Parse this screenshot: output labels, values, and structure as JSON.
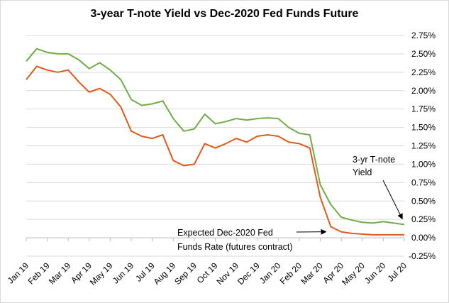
{
  "chart_data": {
    "type": "line",
    "title": "3-year T-note Yield vs Dec-2020 Fed Funds Future",
    "xlabel": "",
    "ylabel": "",
    "ylim": [
      -0.25,
      2.75
    ],
    "y_ticks": [
      "2.75%",
      "2.50%",
      "2.25%",
      "2.00%",
      "1.75%",
      "1.50%",
      "1.25%",
      "1.00%",
      "0.75%",
      "0.50%",
      "0.25%",
      "0.00%",
      "-0.25%"
    ],
    "y_tick_values": [
      2.75,
      2.5,
      2.25,
      2.0,
      1.75,
      1.5,
      1.25,
      1.0,
      0.75,
      0.5,
      0.25,
      0.0,
      -0.25
    ],
    "x_ticks": [
      "Jan 19",
      "Feb 19",
      "Mar 19",
      "Apr 19",
      "May 19",
      "Jun 19",
      "Jul 19",
      "Aug 19",
      "Sep 19",
      "Oct 19",
      "Nov 19",
      "Dec 19",
      "Jan 20",
      "Feb 20",
      "Mar 20",
      "Apr 20",
      "May 20",
      "Jun 20",
      "Jul 20"
    ],
    "grid": true,
    "legend": "none",
    "series": [
      {
        "color": "#70ad47",
        "points": [
          [
            "Jan 19",
            2.4
          ],
          [
            "Jan 19 mid",
            2.57
          ],
          [
            "Feb 19",
            2.52
          ],
          [
            "Feb 19 mid",
            2.5
          ],
          [
            "Mar 19",
            2.5
          ],
          [
            "Mar 19 mid",
            2.42
          ],
          [
            "Apr 19",
            2.3
          ],
          [
            "Apr 19 mid",
            2.38
          ],
          [
            "May 19",
            2.28
          ],
          [
            "May 19 mid",
            2.15
          ],
          [
            "Jun 19",
            1.88
          ],
          [
            "Jun 19 mid",
            1.8
          ],
          [
            "Jul 19",
            1.82
          ],
          [
            "Jul 19 mid",
            1.86
          ],
          [
            "Aug 19",
            1.62
          ],
          [
            "Aug 19 mid",
            1.45
          ],
          [
            "Sep 19",
            1.48
          ],
          [
            "Sep 19 mid",
            1.68
          ],
          [
            "Oct 19",
            1.55
          ],
          [
            "Oct 19 mid",
            1.58
          ],
          [
            "Nov 19",
            1.62
          ],
          [
            "Nov 19 mid",
            1.6
          ],
          [
            "Dec 19",
            1.62
          ],
          [
            "Dec 19 mid",
            1.63
          ],
          [
            "Jan 20",
            1.62
          ],
          [
            "Jan 20 mid",
            1.5
          ],
          [
            "Feb 20",
            1.42
          ],
          [
            "Feb 20 mid",
            1.4
          ],
          [
            "Mar 20",
            0.72
          ],
          [
            "Mar 20 mid",
            0.45
          ],
          [
            "Apr 20",
            0.28
          ],
          [
            "Apr 20 mid",
            0.24
          ],
          [
            "May 20",
            0.21
          ],
          [
            "May 20 mid",
            0.2
          ],
          [
            "Jun 20",
            0.22
          ],
          [
            "Jun 20 mid",
            0.2
          ],
          [
            "Jul 20",
            0.18
          ]
        ]
      },
      {
        "color": "#e05a1a",
        "points": [
          [
            "Jan 19",
            2.15
          ],
          [
            "Jan 19 mid",
            2.33
          ],
          [
            "Feb 19",
            2.28
          ],
          [
            "Feb 19 mid",
            2.25
          ],
          [
            "Mar 19",
            2.28
          ],
          [
            "Mar 19 mid",
            2.12
          ],
          [
            "Apr 19",
            1.98
          ],
          [
            "Apr 19 mid",
            2.03
          ],
          [
            "May 19",
            1.95
          ],
          [
            "May 19 mid",
            1.78
          ],
          [
            "Jun 19",
            1.45
          ],
          [
            "Jun 19 mid",
            1.38
          ],
          [
            "Jul 19",
            1.35
          ],
          [
            "Jul 19 mid",
            1.4
          ],
          [
            "Aug 19",
            1.05
          ],
          [
            "Aug 19 mid",
            0.98
          ],
          [
            "Sep 19",
            1.0
          ],
          [
            "Sep 19 mid",
            1.28
          ],
          [
            "Oct 19",
            1.22
          ],
          [
            "Oct 19 mid",
            1.28
          ],
          [
            "Nov 19",
            1.35
          ],
          [
            "Nov 19 mid",
            1.3
          ],
          [
            "Dec 19",
            1.38
          ],
          [
            "Dec 19 mid",
            1.4
          ],
          [
            "Jan 20",
            1.38
          ],
          [
            "Jan 20 mid",
            1.3
          ],
          [
            "Feb 20",
            1.28
          ],
          [
            "Feb 20 mid",
            1.22
          ],
          [
            "Mar 20",
            0.55
          ],
          [
            "Mar 20 mid",
            0.15
          ],
          [
            "Apr 20",
            0.08
          ],
          [
            "Apr 20 mid",
            0.06
          ],
          [
            "May 20",
            0.05
          ],
          [
            "May 20 mid",
            0.04
          ],
          [
            "Jun 20",
            0.04
          ],
          [
            "Jun 20 mid",
            0.04
          ],
          [
            "Jul 20",
            0.04
          ]
        ]
      }
    ],
    "annotations": [
      {
        "lines": [
          "3-yr T-note",
          "Yield"
        ],
        "target_series": 0,
        "target_x": "Jun 20 mid"
      },
      {
        "lines": [
          "Expected Dec-2020 Fed",
          "Funds Rate (futures contract)"
        ],
        "target_series": 1,
        "target_x": "Mar 20"
      }
    ],
    "colors": {
      "gridline": "#d9d9d9",
      "axis": "#bfbfbf",
      "arrow": "#000000"
    }
  }
}
